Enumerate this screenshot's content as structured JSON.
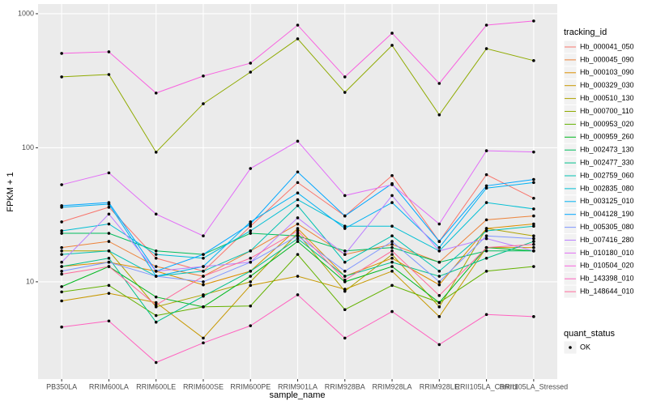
{
  "chart_data": {
    "type": "line",
    "x_label": "sample_name",
    "y_label": "FPKM + 1",
    "log_y": true,
    "grid": true,
    "ylim": [
      1.88,
      1181
    ],
    "yticks": [
      10,
      100,
      1000
    ],
    "categories": [
      "PB350LA",
      "RRIM600LA",
      "RRIM600LE",
      "RRIM600SE",
      "RRIM600PE",
      "RRIM901LA",
      "RRIM928BA",
      "RRIM928LA",
      "RRIM928LE",
      "RRII105LA_Control",
      "RRII105LA_Stressed"
    ],
    "legend_title": "tracking_id",
    "legend_position": "right",
    "point_legend_title": "quant_status",
    "point_legend_label": "OK",
    "point_color": "#000000",
    "series": [
      {
        "name": "Hb_000041_050",
        "color": "#F8766D",
        "values": [
          28,
          36,
          15,
          12,
          26,
          55,
          31,
          62,
          20,
          63,
          42
        ]
      },
      {
        "name": "Hb_000045_090",
        "color": "#EC8239",
        "values": [
          18,
          20,
          13,
          11,
          17,
          27,
          16,
          19,
          14,
          29,
          31
        ]
      },
      {
        "name": "Hb_000103_090",
        "color": "#DB8E00",
        "values": [
          13,
          14,
          12,
          9.5,
          12,
          25,
          11,
          15,
          9.5,
          25,
          27
        ]
      },
      {
        "name": "Hb_000329_030",
        "color": "#C79800",
        "values": [
          7.2,
          8.2,
          7,
          3.8,
          9.4,
          11,
          8.8,
          12,
          5.5,
          18,
          18
        ]
      },
      {
        "name": "Hb_000510_130",
        "color": "#AEA200",
        "values": [
          17,
          17,
          6.5,
          8,
          10,
          23,
          8.5,
          16,
          6.5,
          25,
          22
        ]
      },
      {
        "name": "Hb_000700_110",
        "color": "#8FAA00",
        "values": [
          338,
          352,
          92.7,
          213,
          367,
          650,
          259,
          581,
          176,
          549,
          447
        ]
      },
      {
        "name": "Hb_000953_020",
        "color": "#64B200",
        "values": [
          8.4,
          9.4,
          5.6,
          6.5,
          6.6,
          16,
          6.2,
          9.4,
          7,
          12,
          13
        ]
      },
      {
        "name": "Hb_000959_260",
        "color": "#00B81F",
        "values": [
          9.2,
          13,
          7.7,
          6.5,
          11,
          20,
          10,
          13,
          7,
          18,
          17
        ]
      },
      {
        "name": "Hb_002473_130",
        "color": "#00BD5C",
        "values": [
          23,
          23,
          17,
          16,
          23,
          22,
          17,
          18,
          14,
          17,
          17
        ]
      },
      {
        "name": "Hb_002477_330",
        "color": "#00C08B",
        "values": [
          13,
          15,
          5,
          7.8,
          12,
          21,
          11,
          14,
          11,
          15,
          20
        ]
      },
      {
        "name": "Hb_002759_060",
        "color": "#00C1B2",
        "values": [
          16,
          17,
          11,
          12,
          17,
          37,
          14,
          22,
          12,
          24,
          26
        ]
      },
      {
        "name": "Hb_002835_080",
        "color": "#00BFD4",
        "values": [
          24,
          27,
          16,
          15,
          24,
          41,
          26,
          26,
          17,
          39,
          35
        ]
      },
      {
        "name": "Hb_003125_010",
        "color": "#00B2F3",
        "values": [
          36,
          38,
          11,
          13,
          28,
          46,
          25,
          39,
          18,
          50,
          55
        ]
      },
      {
        "name": "Hb_004128_190",
        "color": "#00A6FF",
        "values": [
          37,
          39,
          12,
          16,
          27,
          66,
          31,
          54,
          20,
          52,
          58
        ]
      },
      {
        "name": "Hb_005305_080",
        "color": "#7F96FF",
        "values": [
          12,
          14,
          11,
          10,
          14,
          22,
          12,
          20,
          10,
          22,
          21
        ]
      },
      {
        "name": "Hb_007416_280",
        "color": "#BC81FF",
        "values": [
          14,
          32,
          12,
          13,
          14,
          30,
          16,
          44,
          17,
          21,
          17
        ]
      },
      {
        "name": "Hb_010180_010",
        "color": "#E26EF7",
        "values": [
          53,
          65,
          32,
          22,
          70,
          112,
          44,
          53,
          27,
          95,
          93
        ]
      },
      {
        "name": "Hb_010504_020",
        "color": "#F863DF",
        "values": [
          506,
          520,
          256,
          343,
          428,
          822,
          338,
          716,
          302,
          822,
          883
        ]
      },
      {
        "name": "Hb_143398_010",
        "color": "#FF62BF",
        "values": [
          4.6,
          5.1,
          2.5,
          3.5,
          4.7,
          8,
          3.8,
          6,
          3.4,
          5.7,
          5.5
        ]
      },
      {
        "name": "Hb_148644_010",
        "color": "#FF6A9A",
        "values": [
          11.4,
          13,
          6.7,
          11,
          15,
          24,
          10.3,
          17,
          7.9,
          18,
          19
        ]
      }
    ]
  }
}
